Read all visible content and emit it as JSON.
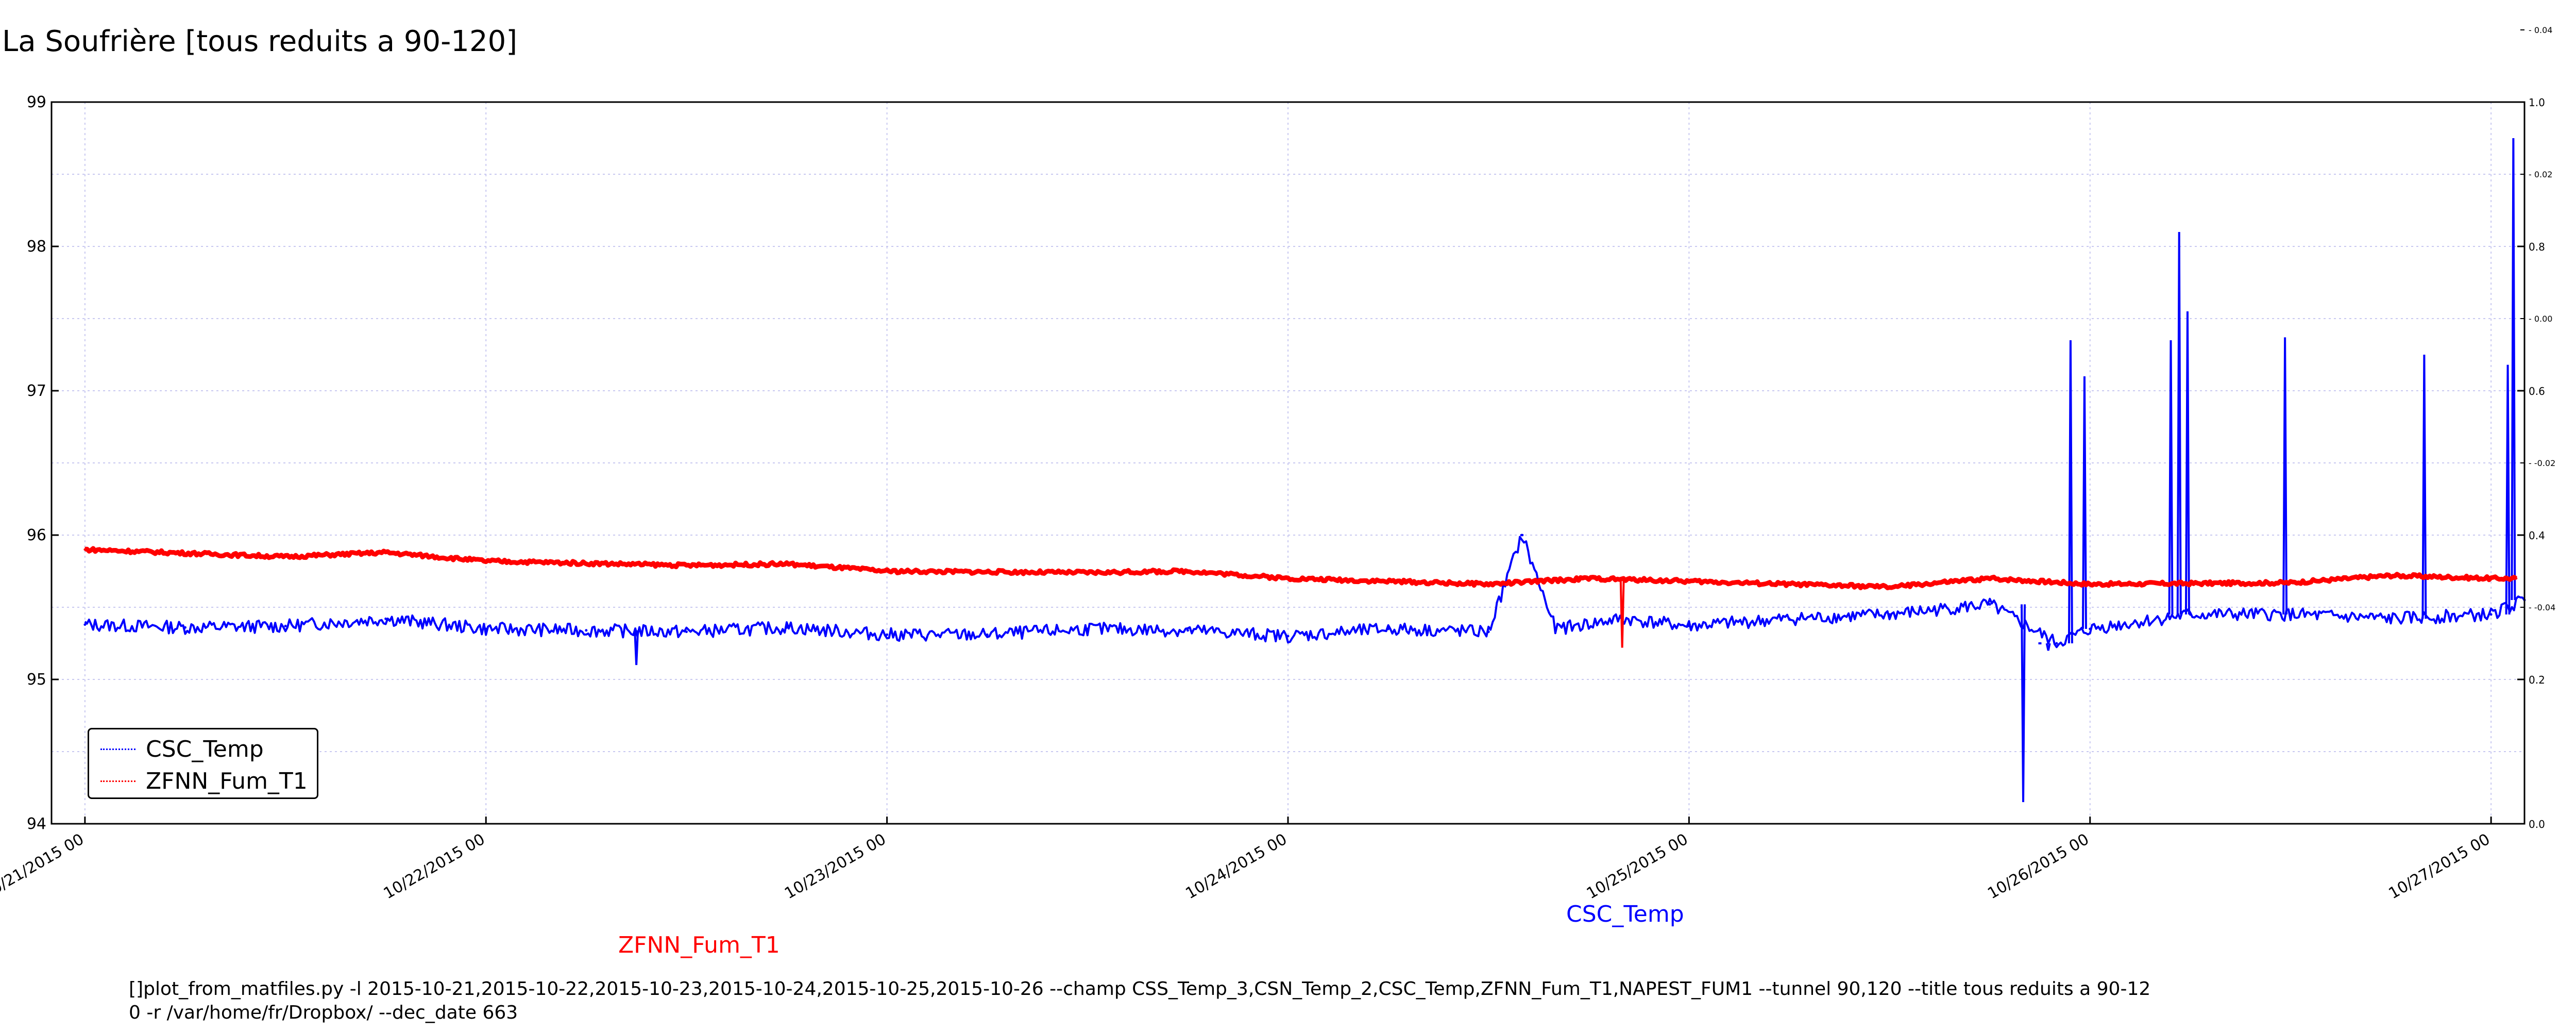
{
  "figure": {
    "title": "La Soufrière [tous reduits a 90-120]",
    "command_line": "[]plot_from_matfiles.py -l 2015-10-21,2015-10-22,2015-10-23,2015-10-24,2015-10-25,2015-10-26 --champ CSS_Temp_3,CSN_Temp_2,CSC_Temp,ZFNN_Fum_T1,NAPEST_FUM1 --tunnel 90,120 --title tous reduits a 90-12\n0 -r /var/home/fr/Dropbox/ --dec_date 663",
    "series_labels": [
      {
        "text": "ZFNN_Fum_T1",
        "color": "#ff0000"
      },
      {
        "text": "CSC_Temp",
        "color": "#0000ff"
      }
    ]
  },
  "legend": {
    "entries": [
      {
        "label": "CSC_Temp",
        "color": "#0000ff"
      },
      {
        "label": "ZFNN_Fum_T1",
        "color": "#ff0000"
      }
    ],
    "placement": "lower-left"
  },
  "colors": {
    "csc": "#0000ff",
    "zfnn": "#ff0000",
    "grid": "#c8c8f0"
  },
  "chart_data": {
    "type": "line",
    "x_unit": "date",
    "xlim": [
      "2015-10-20 22:00",
      "2015-10-27 02:00"
    ],
    "x_ticks": [
      {
        "label": "10/21/2015 00",
        "x": "2015-10-21 00:00"
      },
      {
        "label": "10/22/2015 00",
        "x": "2015-10-22 00:00"
      },
      {
        "label": "10/23/2015 00",
        "x": "2015-10-23 00:00"
      },
      {
        "label": "10/24/2015 00",
        "x": "2015-10-24 00:00"
      },
      {
        "label": "10/25/2015 00",
        "x": "2015-10-25 00:00"
      },
      {
        "label": "10/26/2015 00",
        "x": "2015-10-26 00:00"
      },
      {
        "label": "10/27/2015 00",
        "x": "2015-10-27 00:00"
      }
    ],
    "ylim": [
      94,
      99
    ],
    "y_ticks": [
      "94",
      "95",
      "96",
      "97",
      "98",
      "99"
    ],
    "y2_ticks": [
      "0.0",
      "0.2",
      "0.4",
      "0.6",
      "0.8",
      "1.0"
    ],
    "y2_minor_ticks": [
      "-0.04",
      "-0.02",
      "0.00",
      "0.02",
      "0.04"
    ],
    "grid": true,
    "series": [
      {
        "name": "CSC_Temp",
        "color": "#0000ff",
        "points": [
          [
            "2015-10-21 00:00",
            95.38
          ],
          [
            "2015-10-21 06:00",
            95.36
          ],
          [
            "2015-10-21 12:00",
            95.37
          ],
          [
            "2015-10-21 18:00",
            95.42
          ],
          [
            "2015-10-22 00:00",
            95.35
          ],
          [
            "2015-10-22 06:00",
            95.34
          ],
          [
            "2015-10-22 12:00",
            95.33
          ],
          [
            "2015-10-22 18:00",
            95.36
          ],
          [
            "2015-10-23 00:00",
            95.31
          ],
          [
            "2015-10-23 06:00",
            95.31
          ],
          [
            "2015-10-23 12:00",
            95.35
          ],
          [
            "2015-10-23 18:00",
            95.34
          ],
          [
            "2015-10-24 00:00",
            95.3
          ],
          [
            "2015-10-24 06:00",
            95.35
          ],
          [
            "2015-10-24 12:00",
            95.33
          ],
          [
            "2015-10-24 14:00",
            96.0
          ],
          [
            "2015-10-24 16:00",
            95.35
          ],
          [
            "2015-10-24 20:00",
            95.42
          ],
          [
            "2015-10-25 00:00",
            95.37
          ],
          [
            "2015-10-25 06:00",
            95.42
          ],
          [
            "2015-10-25 12:00",
            95.45
          ],
          [
            "2015-10-25 18:00",
            95.52
          ],
          [
            "2015-10-25 22:00",
            95.25
          ],
          [
            "2015-10-26 00:00",
            95.35
          ],
          [
            "2015-10-26 06:00",
            95.45
          ],
          [
            "2015-10-26 12:00",
            95.45
          ],
          [
            "2015-10-26 18:00",
            95.42
          ],
          [
            "2015-10-27 00:00",
            95.45
          ],
          [
            "2015-10-27 02:00",
            95.55
          ]
        ],
        "spikes": [
          [
            "2015-10-22 09:00",
            95.1
          ],
          [
            "2015-10-24 14:00",
            96.0
          ],
          [
            "2015-10-25 20:00",
            94.15
          ],
          [
            "2015-10-25 21:00",
            95.25
          ],
          [
            "2015-10-25 21:30",
            95.2
          ],
          [
            "2015-10-25 22:50",
            97.35
          ],
          [
            "2015-10-25 23:40",
            97.1
          ],
          [
            "2015-10-26 04:50",
            97.35
          ],
          [
            "2015-10-26 05:20",
            98.1
          ],
          [
            "2015-10-26 05:50",
            97.55
          ],
          [
            "2015-10-26 11:40",
            97.37
          ],
          [
            "2015-10-26 20:00",
            97.25
          ],
          [
            "2015-10-27 01:00",
            97.18
          ],
          [
            "2015-10-27 01:20",
            98.75
          ]
        ]
      },
      {
        "name": "ZFNN_Fum_T1",
        "color": "#ff0000",
        "points": [
          [
            "2015-10-21 00:00",
            95.9
          ],
          [
            "2015-10-21 12:00",
            95.85
          ],
          [
            "2015-10-21 18:00",
            95.88
          ],
          [
            "2015-10-22 00:00",
            95.82
          ],
          [
            "2015-10-22 12:00",
            95.79
          ],
          [
            "2015-10-22 18:00",
            95.8
          ],
          [
            "2015-10-23 00:00",
            95.75
          ],
          [
            "2015-10-23 12:00",
            95.74
          ],
          [
            "2015-10-23 18:00",
            95.75
          ],
          [
            "2015-10-24 00:00",
            95.7
          ],
          [
            "2015-10-24 12:00",
            95.66
          ],
          [
            "2015-10-24 18:00",
            95.7
          ],
          [
            "2015-10-25 00:00",
            95.68
          ],
          [
            "2015-10-25 12:00",
            95.64
          ],
          [
            "2015-10-25 18:00",
            95.7
          ],
          [
            "2015-10-26 00:00",
            95.66
          ],
          [
            "2015-10-26 12:00",
            95.67
          ],
          [
            "2015-10-26 18:00",
            95.72
          ],
          [
            "2015-10-27 00:00",
            95.7
          ],
          [
            "2015-10-27 01:30",
            95.7
          ]
        ],
        "spikes": [
          [
            "2015-10-24 20:00",
            95.22
          ]
        ]
      }
    ]
  }
}
